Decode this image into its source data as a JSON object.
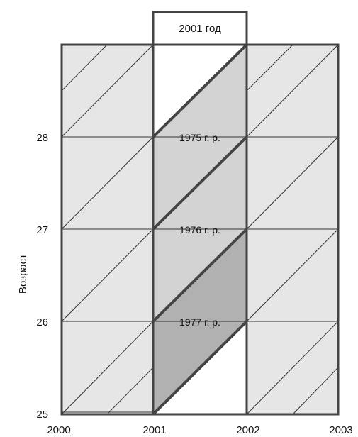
{
  "header": {
    "label": "2001 год"
  },
  "y_axis": {
    "label": "Возраст",
    "ticks": [
      "25",
      "26",
      "27",
      "28"
    ]
  },
  "x_axis": {
    "ticks": [
      "2000",
      "2001",
      "2002",
      "2003"
    ]
  },
  "cohorts": [
    {
      "label": "1975 г. р."
    },
    {
      "label": "1976 г. р."
    },
    {
      "label": "1977 г. р."
    }
  ],
  "colors": {
    "grid_fill": "#e6e6e6",
    "cohort_light": "#d3d3d3",
    "cohort_dark": "#b1b1b1",
    "line": "#333333",
    "frame": "#444444",
    "background": "#ffffff"
  }
}
